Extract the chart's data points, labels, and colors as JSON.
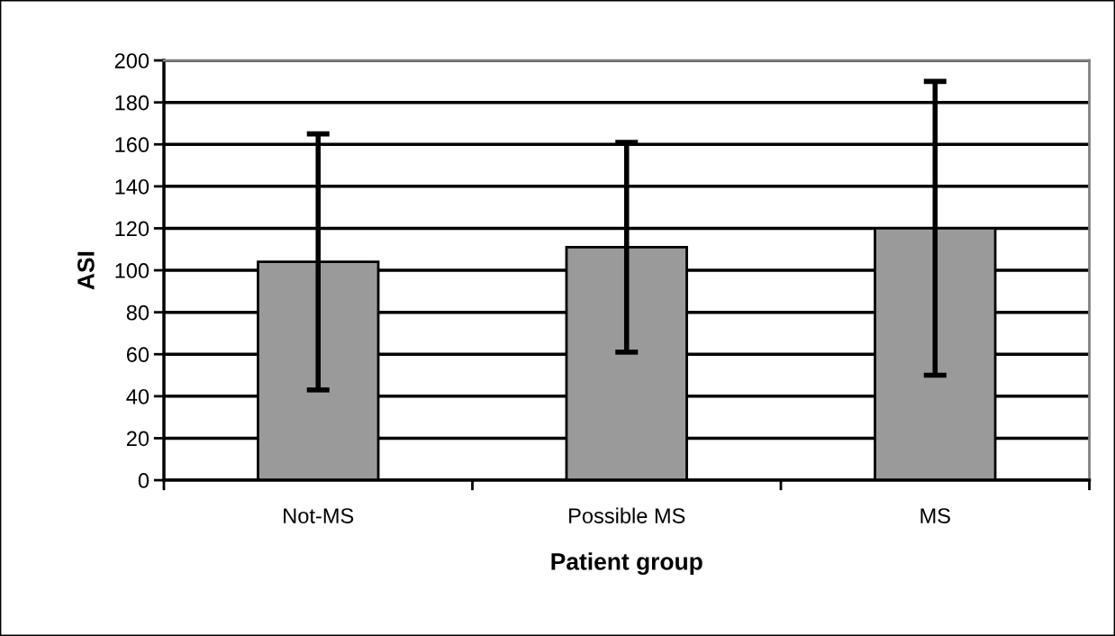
{
  "chart_data": {
    "type": "bar",
    "xlabel": "Patient group",
    "ylabel": "ASI",
    "categories": [
      "Not-MS",
      "Possible MS",
      "MS"
    ],
    "values": [
      104,
      111,
      120
    ],
    "errors": [
      61,
      50,
      70
    ],
    "color": "#9a9a9a",
    "ylim": [
      0,
      200
    ],
    "yticks": [
      0,
      20,
      40,
      60,
      80,
      100,
      120,
      140,
      160,
      180,
      200
    ],
    "grid": "y",
    "legend": false
  }
}
